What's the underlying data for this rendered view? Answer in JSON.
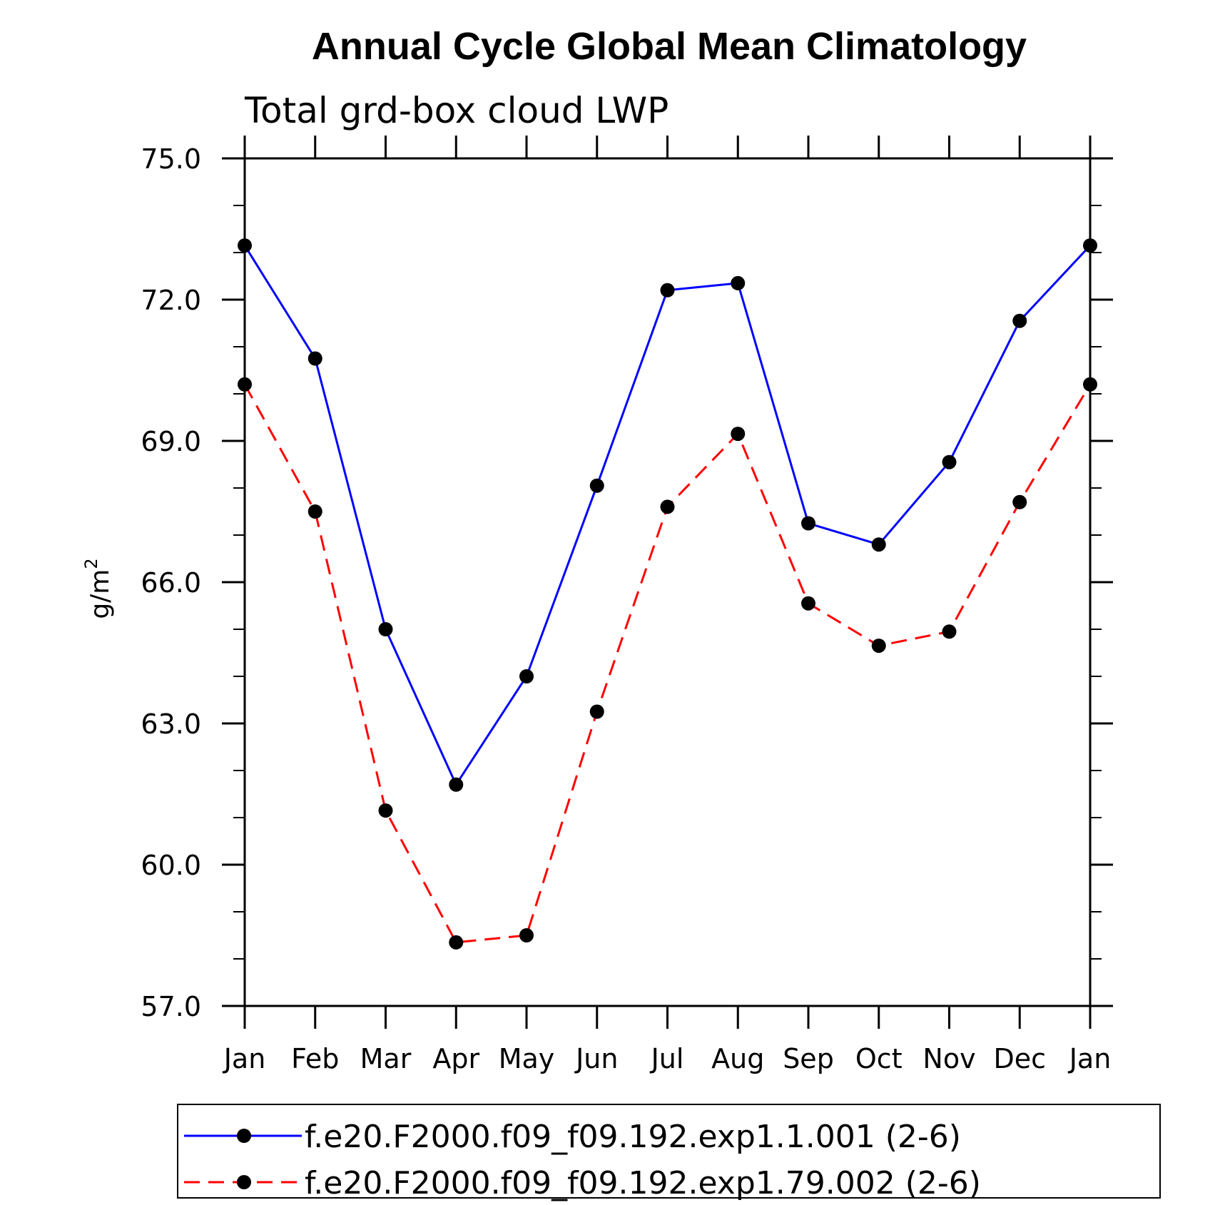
{
  "chart_data": {
    "type": "line",
    "title": "Annual Cycle Global Mean Climatology",
    "subtitle": "Total grd-box cloud LWP",
    "ylabel_base": "g/m",
    "ylabel_sup": "2",
    "xlabel": "",
    "categories": [
      "Jan",
      "Feb",
      "Mar",
      "Apr",
      "May",
      "Jun",
      "Jul",
      "Aug",
      "Sep",
      "Oct",
      "Nov",
      "Dec",
      "Jan"
    ],
    "ylim": [
      57.0,
      75.0
    ],
    "yticks": [
      "57.0",
      "60.0",
      "63.0",
      "66.0",
      "69.0",
      "72.0",
      "75.0"
    ],
    "grid": false,
    "legend_position": "bottom",
    "series": [
      {
        "name": "f.e20.F2000.f09_f09.192.exp1.1.001 (2-6)",
        "color": "#0000ff",
        "dashed": false,
        "values": [
          73.15,
          70.75,
          65.0,
          61.7,
          64.0,
          68.05,
          72.2,
          72.35,
          67.25,
          66.8,
          68.55,
          71.55,
          73.15
        ]
      },
      {
        "name": "f.e20.F2000.f09_f09.192.exp1.79.002 (2-6)",
        "color": "#ff0000",
        "dashed": true,
        "values": [
          70.2,
          67.5,
          61.15,
          58.35,
          58.5,
          63.25,
          67.6,
          69.15,
          65.55,
          64.65,
          64.95,
          67.7,
          70.2
        ]
      }
    ]
  }
}
